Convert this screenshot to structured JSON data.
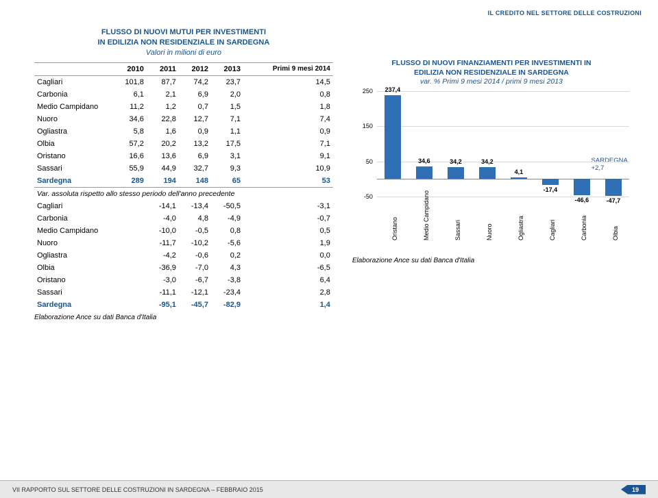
{
  "header": {
    "section_title": "IL CREDITO NEL SETTORE DELLE COSTRUZIONI"
  },
  "table": {
    "title_l1": "FLUSSO DI NUOVI MUTUI PER INVESTIMENTI",
    "title_l2": "IN EDILIZIA NON RESIDENZIALE IN SARDEGNA",
    "title_l3": "Valori in milioni di euro",
    "cols": [
      "",
      "2010",
      "2011",
      "2012",
      "2013",
      "Primi 9 mesi 2014"
    ],
    "rows": [
      {
        "label": "Cagliari",
        "v": [
          "101,8",
          "87,7",
          "74,2",
          "23,7",
          "14,5"
        ]
      },
      {
        "label": "Carbonia",
        "v": [
          "6,1",
          "2,1",
          "6,9",
          "2,0",
          "0,8"
        ]
      },
      {
        "label": "Medio Campidano",
        "v": [
          "11,2",
          "1,2",
          "0,7",
          "1,5",
          "1,8"
        ]
      },
      {
        "label": "Nuoro",
        "v": [
          "34,6",
          "22,8",
          "12,7",
          "7,1",
          "7,4"
        ]
      },
      {
        "label": "Ogliastra",
        "v": [
          "5,8",
          "1,6",
          "0,9",
          "1,1",
          "0,9"
        ]
      },
      {
        "label": "Olbia",
        "v": [
          "57,2",
          "20,2",
          "13,2",
          "17,5",
          "7,1"
        ]
      },
      {
        "label": "Oristano",
        "v": [
          "16,6",
          "13,6",
          "6,9",
          "3,1",
          "9,1"
        ]
      },
      {
        "label": "Sassari",
        "v": [
          "55,9",
          "44,9",
          "32,7",
          "9,3",
          "10,9"
        ]
      }
    ],
    "total_row": {
      "label": "Sardegna",
      "v": [
        "289",
        "194",
        "148",
        "65",
        "53"
      ]
    },
    "var_section_title": "Var. assoluta rispetto allo stesso periodo dell'anno precedente",
    "var_rows": [
      {
        "label": "Cagliari",
        "v": [
          "-14,1",
          "-13,4",
          "-50,5",
          "-3,1"
        ]
      },
      {
        "label": "Carbonia",
        "v": [
          "-4,0",
          "4,8",
          "-4,9",
          "-0,7"
        ]
      },
      {
        "label": "Medio Campidano",
        "v": [
          "-10,0",
          "-0,5",
          "0,8",
          "0,5"
        ]
      },
      {
        "label": "Nuoro",
        "v": [
          "-11,7",
          "-10,2",
          "-5,6",
          "1,9"
        ]
      },
      {
        "label": "Ogliastra",
        "v": [
          "-4,2",
          "-0,6",
          "0,2",
          "0,0"
        ]
      },
      {
        "label": "Olbia",
        "v": [
          "-36,9",
          "-7,0",
          "4,3",
          "-6,5"
        ]
      },
      {
        "label": "Oristano",
        "v": [
          "-3,0",
          "-6,7",
          "-3,8",
          "6,4"
        ]
      },
      {
        "label": "Sassari",
        "v": [
          "-11,1",
          "-12,1",
          "-23,4",
          "2,8"
        ]
      }
    ],
    "var_total": {
      "label": "Sardegna",
      "v": [
        "-95,1",
        "-45,7",
        "-82,9",
        "1,4"
      ]
    },
    "source": "Elaborazione Ance su dati Banca d'Italia"
  },
  "chart": {
    "title_l1": "FLUSSO DI NUOVI FINANZIAMENTI PER INVESTIMENTI IN",
    "title_l2": "EDILIZIA NON RESIDENZIALE IN SARDEGNA",
    "title_l3": "var. % Primi 9 mesi 2014 / primi 9 mesi 2013",
    "type": "bar",
    "bar_color": "#2f6fb3",
    "grid_color": "#d9d9d9",
    "background": "#ffffff",
    "ylim": [
      -50,
      250
    ],
    "yticks": [
      -50,
      50,
      150,
      250
    ],
    "categories": [
      "Oristano",
      "Medio Campidano",
      "Sassari",
      "Nuoro",
      "Ogliastra",
      "Cagliari",
      "Carbonia",
      "Olbia"
    ],
    "values": [
      237.4,
      34.6,
      34.2,
      34.2,
      4.1,
      -17.4,
      -46.6,
      -47.7
    ],
    "value_labels": [
      "237,4",
      "34,6",
      "34,2",
      "34,2",
      "4,1",
      "-17,4",
      "-46,6",
      "-47,7"
    ],
    "annot_label": "SARDEGNA",
    "annot_value": "+2,7",
    "source": "Elaborazione Ance su dati Banca d'Italia"
  },
  "footer": {
    "text": "VII RAPPORTO SUL SETTORE DELLE COSTRUZIONI IN SARDEGNA – FEBBRAIO 2015",
    "page": "19"
  }
}
